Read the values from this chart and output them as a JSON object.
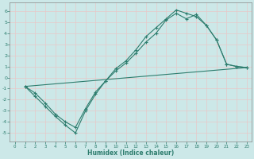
{
  "xlabel": "Humidex (Indice chaleur)",
  "bg_color": "#cce8e8",
  "grid_color": "#e8c8c8",
  "line_color": "#2e7d6e",
  "xlim": [
    -0.5,
    23.5
  ],
  "ylim": [
    -5.8,
    6.8
  ],
  "xticks": [
    0,
    1,
    2,
    3,
    4,
    5,
    6,
    7,
    8,
    9,
    10,
    11,
    12,
    13,
    14,
    15,
    16,
    17,
    18,
    19,
    20,
    21,
    22,
    23
  ],
  "yticks": [
    -5,
    -4,
    -3,
    -2,
    -1,
    0,
    1,
    2,
    3,
    4,
    5,
    6
  ],
  "line1_x": [
    1,
    2,
    3,
    4,
    5,
    6,
    7,
    8,
    9,
    10,
    11,
    12,
    13,
    14,
    15,
    16,
    17,
    18,
    19,
    20,
    21,
    22,
    23
  ],
  "line1_y": [
    -0.8,
    -1.7,
    -2.6,
    -3.5,
    -4.3,
    -5.0,
    -3.0,
    -1.5,
    -0.3,
    0.8,
    1.5,
    2.5,
    3.7,
    4.5,
    5.3,
    6.1,
    5.8,
    5.5,
    4.7,
    3.4,
    1.2,
    1.0,
    0.9
  ],
  "line2_x": [
    1,
    2,
    3,
    4,
    5,
    6,
    7,
    8,
    9,
    10,
    11,
    12,
    13,
    14,
    15,
    16,
    17,
    18,
    19,
    20,
    21,
    22,
    23
  ],
  "line2_y": [
    -0.8,
    -1.4,
    -2.3,
    -3.3,
    -4.0,
    -4.5,
    -2.8,
    -1.3,
    -0.3,
    0.6,
    1.3,
    2.2,
    3.2,
    4.0,
    5.2,
    5.8,
    5.3,
    5.7,
    4.7,
    3.4,
    1.2,
    1.0,
    0.9
  ],
  "line3_x": [
    1,
    23
  ],
  "line3_y": [
    -0.8,
    0.9
  ]
}
